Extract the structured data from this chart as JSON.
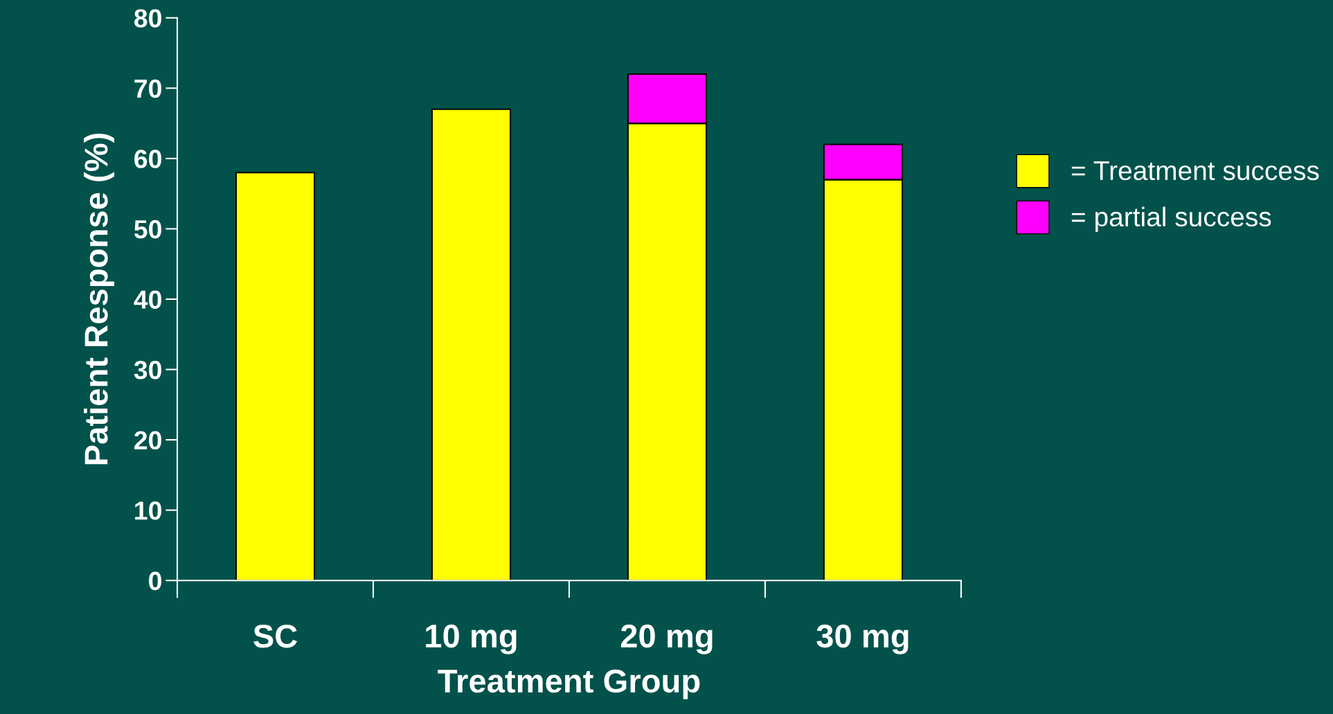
{
  "chart_data": {
    "type": "bar",
    "stacked": true,
    "xlabel": "Treatment Group",
    "ylabel": "Patient Response (%)",
    "categories": [
      "SC",
      "10 mg",
      "20 mg",
      "30 mg"
    ],
    "series": [
      {
        "name": "= Treatment success",
        "color": "#ffff00",
        "values": [
          58,
          67,
          65,
          57
        ]
      },
      {
        "name": "= partial success",
        "color": "#ff00ff",
        "values": [
          null,
          null,
          7,
          5
        ]
      }
    ],
    "ylim": [
      0,
      80
    ],
    "yticks": [
      0,
      10,
      20,
      30,
      40,
      50,
      60,
      70,
      80
    ],
    "grid": false,
    "legend": "right"
  }
}
